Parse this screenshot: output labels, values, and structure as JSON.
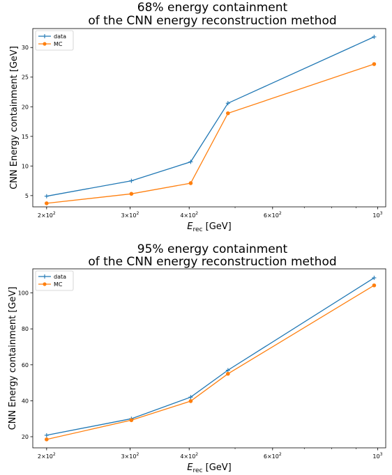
{
  "chart_data": [
    {
      "type": "line",
      "title": [
        "68% energy containment",
        "of the CNN energy reconstruction method"
      ],
      "xlabel": "E_rec [GeV]",
      "xlabel_main": "E",
      "xlabel_sub": "rec",
      "xlabel_unit": " [GeV]",
      "ylabel": "CNN Energy containment [GeV]",
      "x_scale": "log",
      "xlim": [
        187,
        1040
      ],
      "ylim": [
        3.1,
        33.2
      ],
      "x_ticks": [
        {
          "value": 200,
          "mantissa": "2",
          "exp": "2"
        },
        {
          "value": 300,
          "mantissa": "3",
          "exp": "2"
        },
        {
          "value": 400,
          "mantissa": "4",
          "exp": "2"
        },
        {
          "value": 600,
          "mantissa": "6",
          "exp": "2"
        },
        {
          "value": 1000,
          "mantissa": "",
          "exp": "3"
        }
      ],
      "y_ticks": [
        5,
        10,
        15,
        20,
        25,
        30
      ],
      "grid": false,
      "legend": "top-left",
      "series": [
        {
          "name": "data",
          "color": "#1f77b4",
          "marker": "plus",
          "x": [
            200,
            302,
            403,
            483,
            983
          ],
          "y": [
            4.9,
            7.5,
            10.7,
            20.6,
            31.8
          ]
        },
        {
          "name": "MC",
          "color": "#ff7f0e",
          "marker": "circle",
          "x": [
            200,
            302,
            403,
            483,
            983
          ],
          "y": [
            3.7,
            5.3,
            7.1,
            18.9,
            27.2
          ]
        }
      ]
    },
    {
      "type": "line",
      "title": [
        "95% energy containment",
        "of the CNN energy reconstruction method"
      ],
      "xlabel": "E_rec [GeV]",
      "xlabel_main": "E",
      "xlabel_sub": "rec",
      "xlabel_unit": " [GeV]",
      "ylabel": "CNN Energy containment [GeV]",
      "x_scale": "log",
      "xlim": [
        187,
        1040
      ],
      "ylim": [
        13.8,
        113.4
      ],
      "x_ticks": [
        {
          "value": 200,
          "mantissa": "2",
          "exp": "2"
        },
        {
          "value": 300,
          "mantissa": "3",
          "exp": "2"
        },
        {
          "value": 400,
          "mantissa": "4",
          "exp": "2"
        },
        {
          "value": 600,
          "mantissa": "6",
          "exp": "2"
        },
        {
          "value": 1000,
          "mantissa": "",
          "exp": "3"
        }
      ],
      "y_ticks": [
        20,
        40,
        60,
        80,
        100
      ],
      "grid": false,
      "legend": "top-left",
      "series": [
        {
          "name": "data",
          "color": "#1f77b4",
          "marker": "plus",
          "x": [
            200,
            302,
            403,
            483,
            983
          ],
          "y": [
            20.8,
            30.0,
            42.0,
            57.0,
            108.4
          ]
        },
        {
          "name": "MC",
          "color": "#ff7f0e",
          "marker": "circle",
          "x": [
            200,
            302,
            403,
            483,
            983
          ],
          "y": [
            18.5,
            29.2,
            39.8,
            55.0,
            104.2
          ]
        }
      ]
    }
  ]
}
